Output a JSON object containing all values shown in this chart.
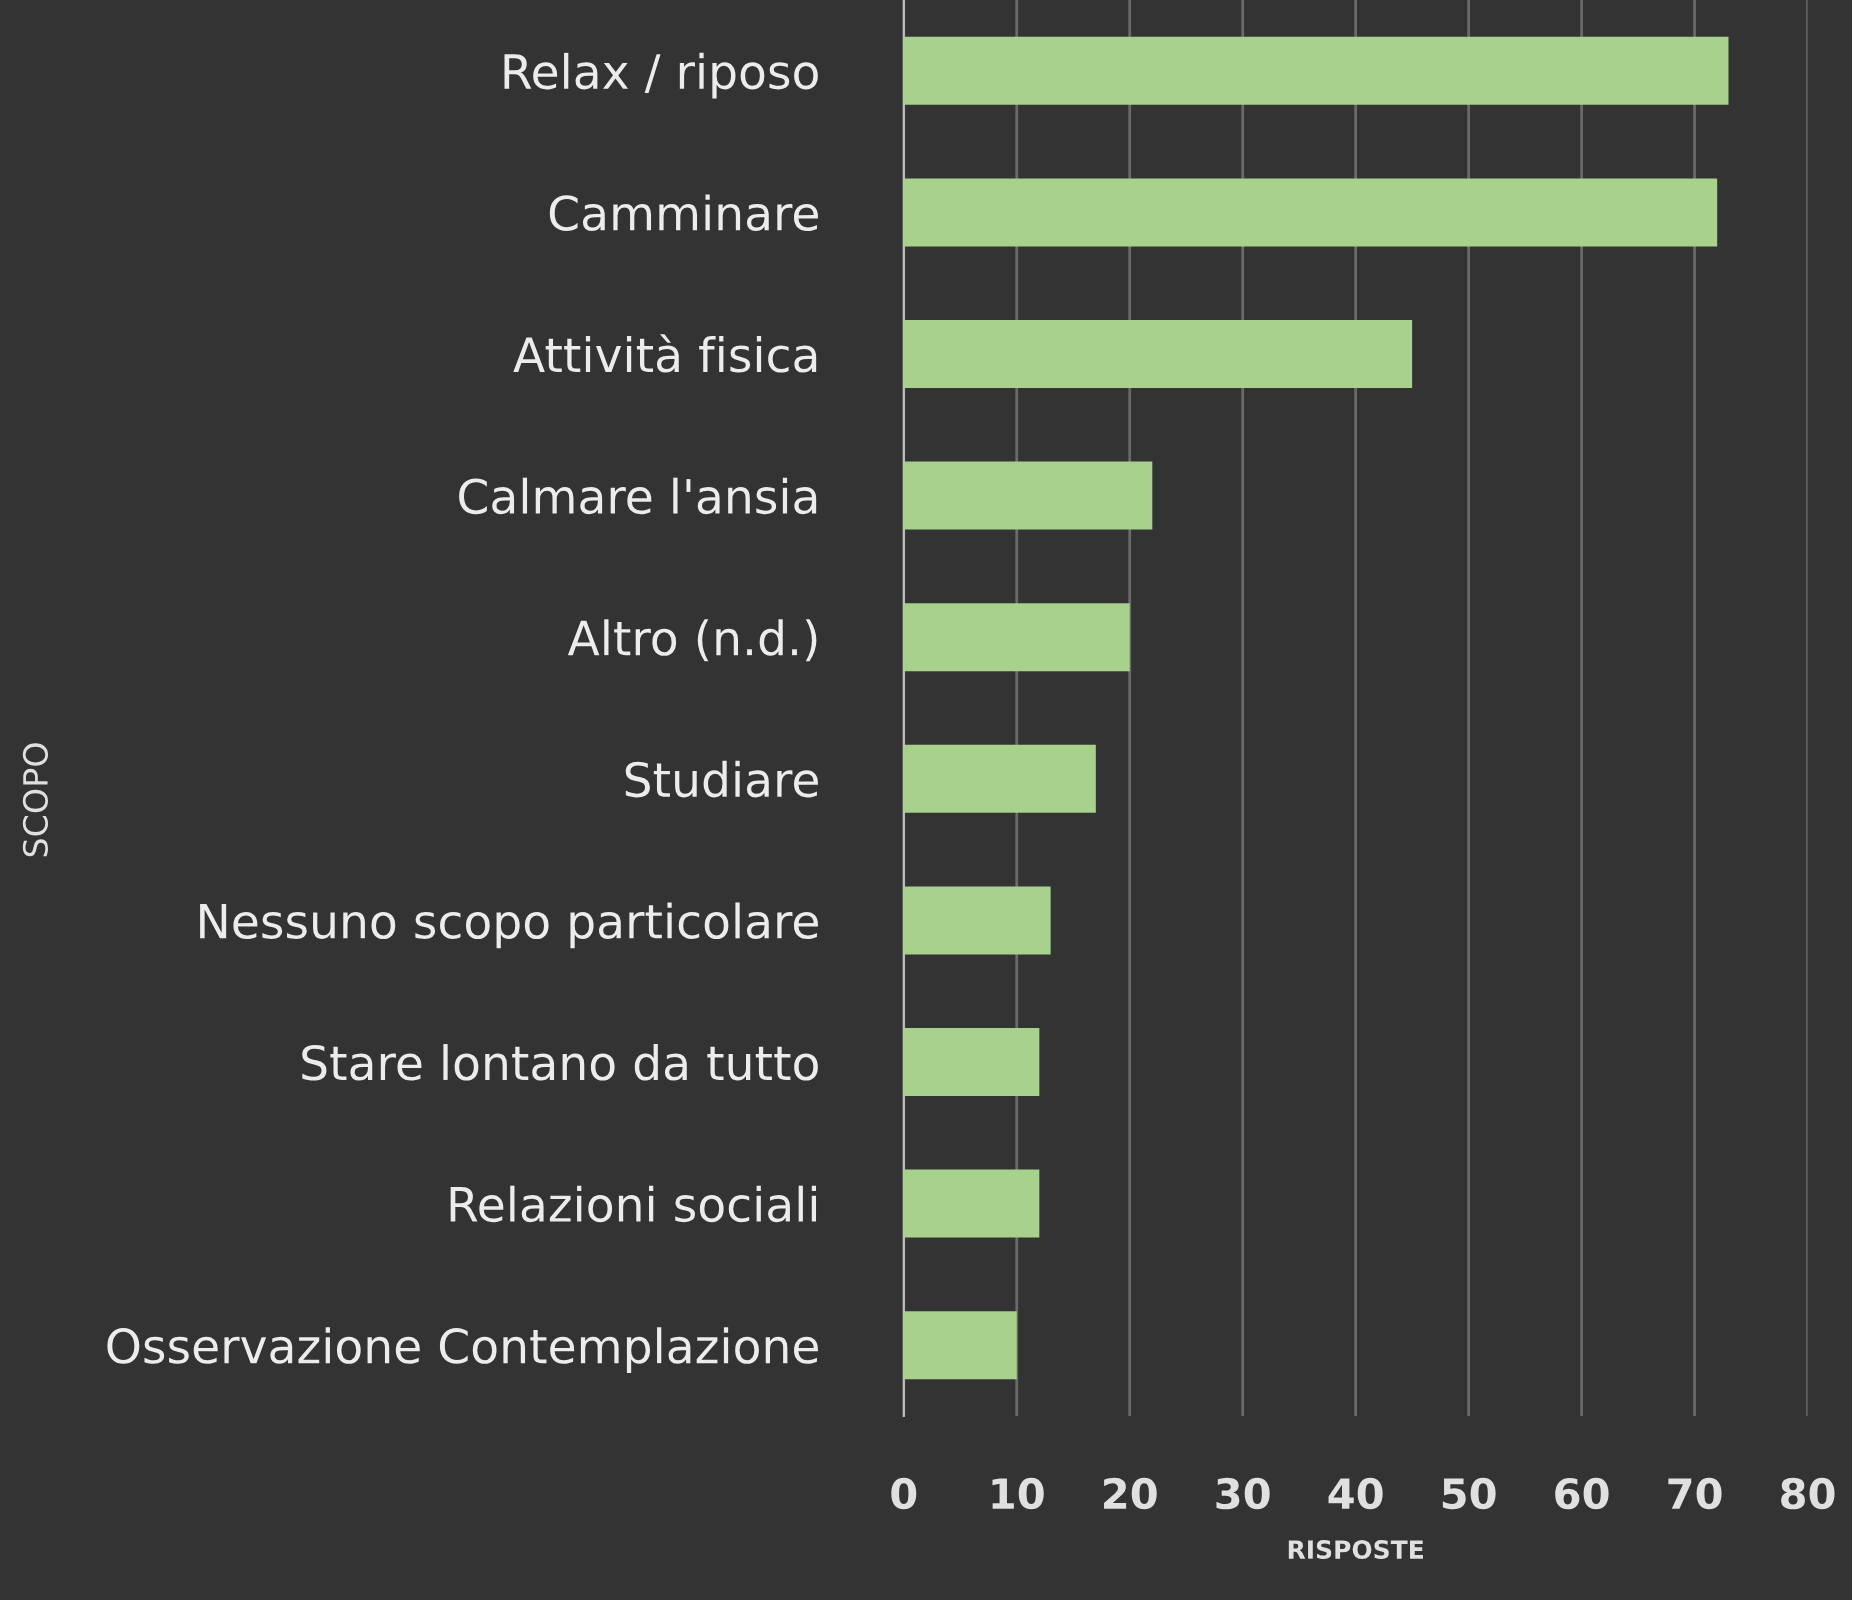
{
  "chart_data": {
    "type": "bar",
    "orientation": "horizontal",
    "categories": [
      "Relax / riposo",
      "Camminare",
      "Attività fisica",
      "Calmare l'ansia",
      "Altro (n.d.)",
      "Studiare",
      "Nessuno scopo particolare",
      "Stare lontano da tutto",
      "Relazioni sociali",
      "Osservazione Contemplazione"
    ],
    "values": [
      73,
      72,
      45,
      22,
      20,
      17,
      13,
      12,
      12,
      10
    ],
    "color": "#a9d18e",
    "xlabel": "RISPOSTE",
    "ylabel": "SCOPO",
    "xlim": [
      0,
      80
    ],
    "xticks": [
      0,
      10,
      20,
      30,
      40,
      50,
      60,
      70,
      80
    ],
    "grid": "x"
  }
}
